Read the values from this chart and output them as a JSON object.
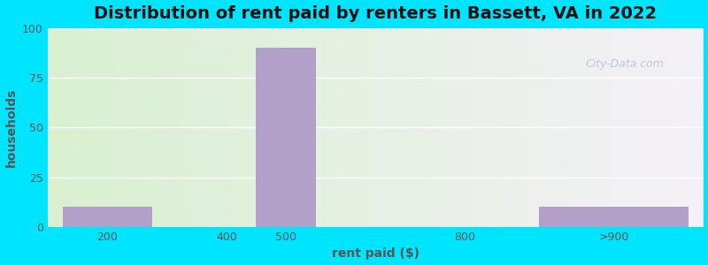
{
  "title": "Distribution of rent paid by renters in Bassett, VA in 2022",
  "xlabel": "rent paid ($)",
  "ylabel": "households",
  "categories": [
    "200",
    "400",
    "500",
    "800",
    ">900"
  ],
  "x_positions": [
    200,
    400,
    500,
    800,
    1050
  ],
  "values": [
    10,
    0,
    90,
    0,
    10
  ],
  "bar_widths": [
    150,
    150,
    100,
    200,
    250
  ],
  "bar_color": "#b3a0c8",
  "ylim": [
    0,
    100
  ],
  "yticks": [
    0,
    25,
    50,
    75,
    100
  ],
  "xlim": [
    100,
    1200
  ],
  "xtick_positions": [
    200,
    400,
    500,
    800,
    1050
  ],
  "xtick_labels": [
    "200",
    "400",
    "500",
    "800",
    ">900"
  ],
  "bg_outer": "#00e5ff",
  "bg_inner_left": "#d8f0d0",
  "bg_inner_right": "#f5f0f5",
  "title_fontsize": 14,
  "axis_label_fontsize": 10,
  "watermark": "City-Data.com"
}
